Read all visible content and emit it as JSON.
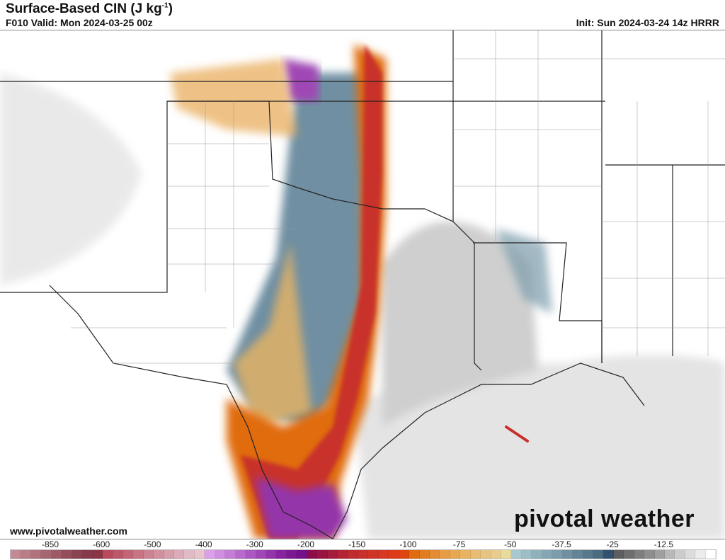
{
  "header": {
    "title": "Surface-Based CIN (J kg",
    "title_sup": "-1",
    "title_end": ")",
    "valid": "F010 Valid: Mon 2024-03-25 00z",
    "init": "Init: Sun 2024-03-24 14z HRRR"
  },
  "footer": {
    "website": "www.pivotalweather.com",
    "logo": "pivotal weather"
  },
  "colorbar": {
    "labels": [
      "-850",
      "-600",
      "-500",
      "-400",
      "-300",
      "-200",
      "-150",
      "-100",
      "-75",
      "-50",
      "-37.5",
      "-25",
      "-12.5"
    ],
    "colors": [
      "#c28a92",
      "#b97e87",
      "#b0727c",
      "#a66671",
      "#9d5a66",
      "#944e5b",
      "#8b4250",
      "#86394a",
      "#8a3546",
      "#b84a5c",
      "#bd5869",
      "#c26676",
      "#c77483",
      "#cc8290",
      "#d1909d",
      "#d69eaa",
      "#dbacb7",
      "#e0bac4",
      "#e8c4cc",
      "#dca0e8",
      "#d08ee0",
      "#c47cd6",
      "#b86acc",
      "#ac58c2",
      "#a046b6",
      "#9434aa",
      "#88229e",
      "#7c1892",
      "#74108a",
      "#8e0c48",
      "#9a1442",
      "#a61c3c",
      "#b22436",
      "#be2c30",
      "#c8302c",
      "#d03428",
      "#d83820",
      "#de3c18",
      "#e04410",
      "#e06c10",
      "#e27c22",
      "#e48c34",
      "#e69c46",
      "#e8a852",
      "#e8b462",
      "#e8bc72",
      "#e8c482",
      "#e8cc8e",
      "#e8dc9c",
      "#a8c8d0",
      "#9cbcc6",
      "#90b0bc",
      "#86a6b4",
      "#7c9cac",
      "#7090a2",
      "#628496",
      "#56788a",
      "#4a6c7e",
      "#345070",
      "#5e5e5e",
      "#6e6e6e",
      "#7e7e7e",
      "#8e8e8e",
      "#a0a0a0",
      "#b8b8b8",
      "#cccccc",
      "#dcdcdc",
      "#ececec",
      "#ffffff"
    ],
    "accent": "#e04410"
  }
}
